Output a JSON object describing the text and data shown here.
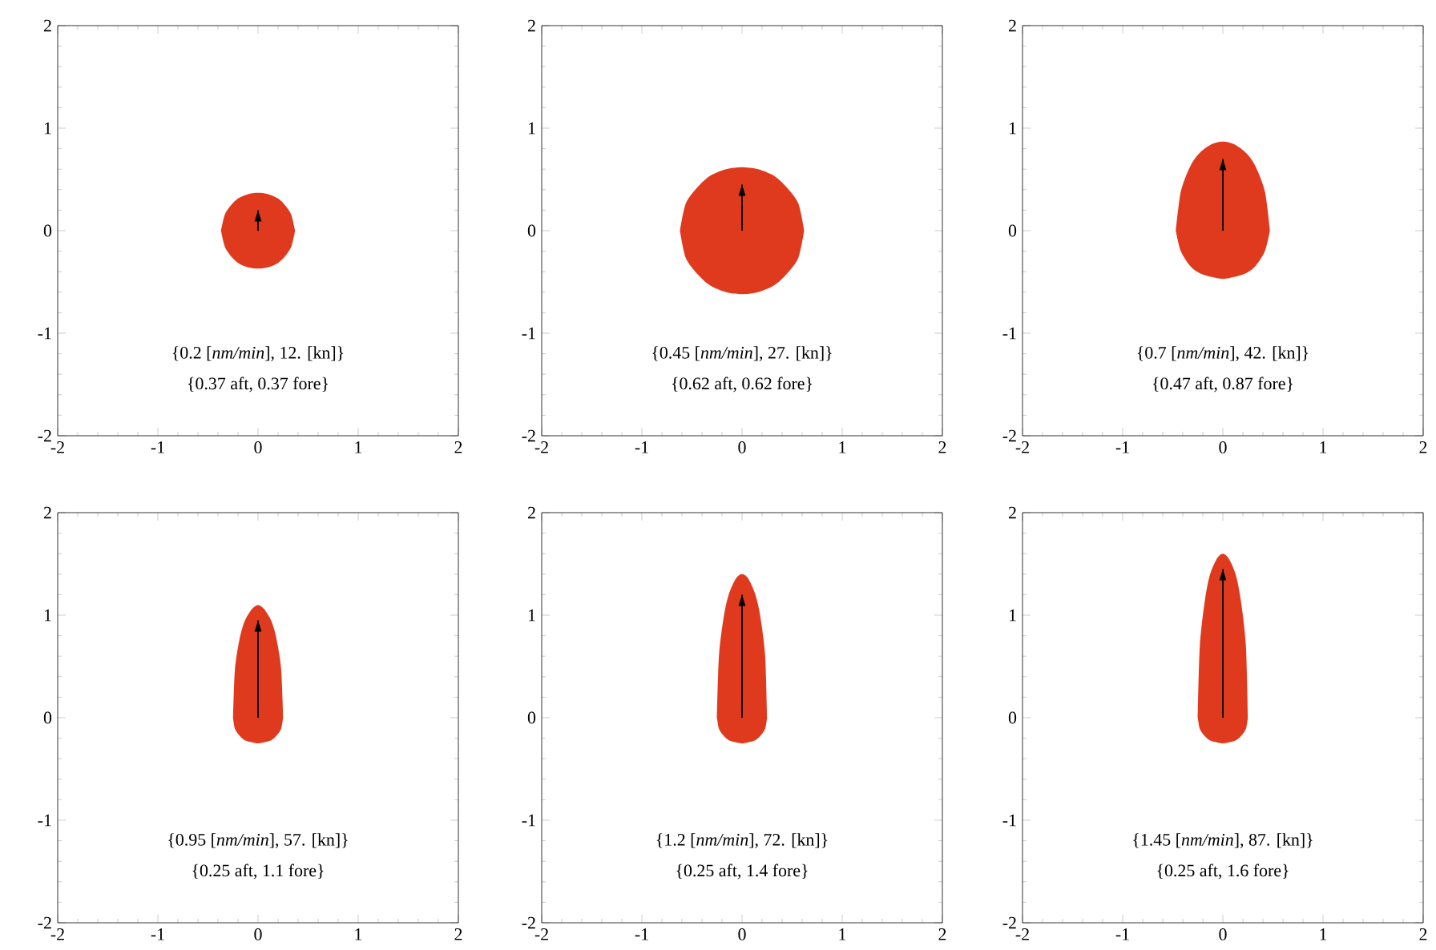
{
  "chart_data": [
    {
      "type": "area",
      "xlim": [
        -2,
        2
      ],
      "ylim": [
        -2,
        2
      ],
      "xticks": [
        -2,
        -1,
        0,
        1,
        2
      ],
      "yticks": [
        -2,
        -1,
        0,
        1,
        2
      ],
      "annotations": [
        "{0.2 [*nm/min*], 12. [kn]}",
        "{0.37 aft, 0.37 fore}"
      ],
      "series": [
        {
          "color": "#e03a1e",
          "x": [
            -0.37,
            -0.33,
            -0.26,
            -0.19,
            -0.09,
            0,
            0.09,
            0.19,
            0.26,
            0.33,
            0.37
          ],
          "values": [
            0,
            0.16,
            0.26,
            0.32,
            0.36,
            0.37,
            0.36,
            0.32,
            0.26,
            0.16,
            0
          ]
        },
        {
          "color": "#e03a1e",
          "x": [
            -0.37,
            -0.33,
            -0.26,
            -0.19,
            -0.09,
            0,
            0.09,
            0.19,
            0.26,
            0.33,
            0.37
          ],
          "values": [
            0,
            -0.16,
            -0.26,
            -0.32,
            -0.36,
            -0.37,
            -0.36,
            -0.32,
            -0.26,
            -0.16,
            0
          ]
        },
        {
          "type": "bar",
          "color": "#000000",
          "x": [
            0
          ],
          "values": [
            0.2
          ]
        }
      ]
    },
    {
      "type": "area",
      "xlim": [
        -2,
        2
      ],
      "ylim": [
        -2,
        2
      ],
      "xticks": [
        -2,
        -1,
        0,
        1,
        2
      ],
      "yticks": [
        -2,
        -1,
        0,
        1,
        2
      ],
      "annotations": [
        "{0.45 [*nm/min*], 27. [kn]}",
        "{0.62 aft, 0.62 fore}"
      ],
      "series": [
        {
          "color": "#e03a1e",
          "x": [
            -0.62,
            -0.56,
            -0.43,
            -0.31,
            -0.16,
            0,
            0.16,
            0.31,
            0.43,
            0.56,
            0.62
          ],
          "values": [
            0,
            0.27,
            0.44,
            0.54,
            0.6,
            0.62,
            0.6,
            0.54,
            0.44,
            0.27,
            0
          ]
        },
        {
          "color": "#e03a1e",
          "x": [
            -0.62,
            -0.56,
            -0.43,
            -0.31,
            -0.16,
            0,
            0.16,
            0.31,
            0.43,
            0.56,
            0.62
          ],
          "values": [
            0,
            -0.27,
            -0.44,
            -0.54,
            -0.6,
            -0.62,
            -0.6,
            -0.54,
            -0.44,
            -0.27,
            0
          ]
        },
        {
          "type": "bar",
          "color": "#000000",
          "x": [
            0
          ],
          "values": [
            0.45
          ]
        }
      ]
    },
    {
      "type": "area",
      "xlim": [
        -2,
        2
      ],
      "ylim": [
        -2,
        2
      ],
      "xticks": [
        -2,
        -1,
        0,
        1,
        2
      ],
      "yticks": [
        -2,
        -1,
        0,
        1,
        2
      ],
      "annotations": [
        "{0.7 [*nm/min*], 42. [kn]}",
        "{0.47 aft, 0.87 fore}"
      ],
      "series": [
        {
          "color": "#e03a1e",
          "x": [
            -0.47,
            -0.42,
            -0.33,
            -0.24,
            -0.12,
            0,
            0.12,
            0.24,
            0.33,
            0.42,
            0.47
          ],
          "values": [
            0,
            0.38,
            0.62,
            0.75,
            0.84,
            0.87,
            0.84,
            0.75,
            0.62,
            0.38,
            0
          ]
        },
        {
          "color": "#e03a1e",
          "x": [
            -0.47,
            -0.42,
            -0.33,
            -0.24,
            -0.12,
            0,
            0.12,
            0.24,
            0.33,
            0.42,
            0.47
          ],
          "values": [
            0,
            -0.2,
            -0.34,
            -0.41,
            -0.45,
            -0.47,
            -0.45,
            -0.41,
            -0.34,
            -0.2,
            0
          ]
        },
        {
          "type": "bar",
          "color": "#000000",
          "x": [
            0
          ],
          "values": [
            0.7
          ]
        }
      ]
    },
    {
      "type": "area",
      "xlim": [
        -2,
        2
      ],
      "ylim": [
        -2,
        2
      ],
      "xticks": [
        -2,
        -1,
        0,
        1,
        2
      ],
      "yticks": [
        -2,
        -1,
        0,
        1,
        2
      ],
      "annotations": [
        "{0.95 [*nm/min*], 57. [kn]}",
        "{0.25 aft, 1.1 fore}"
      ],
      "series": [
        {
          "color": "#e03a1e",
          "x": [
            -0.25,
            -0.23,
            -0.18,
            -0.13,
            -0.06,
            0,
            0.06,
            0.13,
            0.18,
            0.23,
            0.25
          ],
          "values": [
            0,
            0.48,
            0.79,
            0.95,
            1.06,
            1.1,
            1.06,
            0.95,
            0.79,
            0.48,
            0
          ]
        },
        {
          "color": "#e03a1e",
          "x": [
            -0.25,
            -0.23,
            -0.18,
            -0.13,
            -0.06,
            0,
            0.06,
            0.13,
            0.18,
            0.23,
            0.25
          ],
          "values": [
            0,
            -0.11,
            -0.18,
            -0.22,
            -0.24,
            -0.25,
            -0.24,
            -0.22,
            -0.18,
            -0.11,
            0
          ]
        },
        {
          "type": "bar",
          "color": "#000000",
          "x": [
            0
          ],
          "values": [
            0.95
          ]
        }
      ]
    },
    {
      "type": "area",
      "xlim": [
        -2,
        2
      ],
      "ylim": [
        -2,
        2
      ],
      "xticks": [
        -2,
        -1,
        0,
        1,
        2
      ],
      "yticks": [
        -2,
        -1,
        0,
        1,
        2
      ],
      "annotations": [
        "{1.2 [*nm/min*], 72. [kn]}",
        "{0.25 aft, 1.4 fore}"
      ],
      "series": [
        {
          "color": "#e03a1e",
          "x": [
            -0.25,
            -0.23,
            -0.18,
            -0.13,
            -0.06,
            0,
            0.06,
            0.13,
            0.18,
            0.23,
            0.25
          ],
          "values": [
            0,
            0.61,
            1.0,
            1.21,
            1.36,
            1.4,
            1.36,
            1.21,
            1.0,
            0.61,
            0
          ]
        },
        {
          "color": "#e03a1e",
          "x": [
            -0.25,
            -0.23,
            -0.18,
            -0.13,
            -0.06,
            0,
            0.06,
            0.13,
            0.18,
            0.23,
            0.25
          ],
          "values": [
            0,
            -0.11,
            -0.18,
            -0.22,
            -0.24,
            -0.25,
            -0.24,
            -0.22,
            -0.18,
            -0.11,
            0
          ]
        },
        {
          "type": "bar",
          "color": "#000000",
          "x": [
            0
          ],
          "values": [
            1.2
          ]
        }
      ]
    },
    {
      "type": "area",
      "xlim": [
        -2,
        2
      ],
      "ylim": [
        -2,
        2
      ],
      "xticks": [
        -2,
        -1,
        0,
        1,
        2
      ],
      "yticks": [
        -2,
        -1,
        0,
        1,
        2
      ],
      "annotations": [
        "{1.45 [*nm/min*], 87. [kn]}",
        "{0.25 aft, 1.6 fore}"
      ],
      "series": [
        {
          "color": "#e03a1e",
          "x": [
            -0.25,
            -0.23,
            -0.18,
            -0.13,
            -0.06,
            0,
            0.06,
            0.13,
            0.18,
            0.23,
            0.25
          ],
          "values": [
            0,
            0.7,
            1.14,
            1.39,
            1.55,
            1.6,
            1.55,
            1.39,
            1.14,
            0.7,
            0
          ]
        },
        {
          "color": "#e03a1e",
          "x": [
            -0.25,
            -0.23,
            -0.18,
            -0.13,
            -0.06,
            0,
            0.06,
            0.13,
            0.18,
            0.23,
            0.25
          ],
          "values": [
            0,
            -0.11,
            -0.18,
            -0.22,
            -0.24,
            -0.25,
            -0.24,
            -0.22,
            -0.18,
            -0.11,
            0
          ]
        },
        {
          "type": "bar",
          "color": "#000000",
          "x": [
            0
          ],
          "values": [
            1.45
          ]
        }
      ]
    }
  ]
}
